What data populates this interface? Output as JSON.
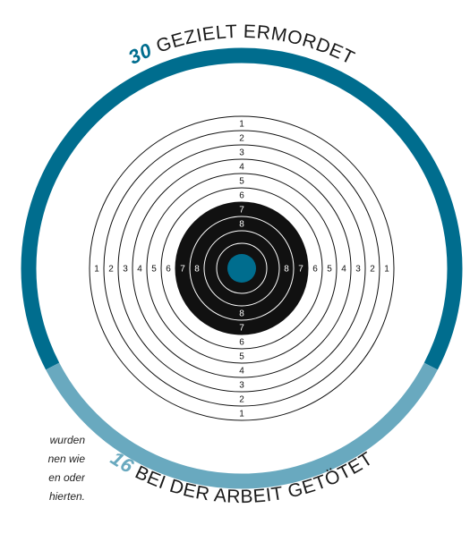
{
  "chart_data": {
    "type": "pie",
    "style": "donut-ring",
    "title": "",
    "segments": [
      {
        "label": "GEZIELT ERMORDET",
        "value": 30,
        "color": "#006d8e"
      },
      {
        "label": "BEI DER ARBEIT GETÖTET",
        "value": 16,
        "color": "#69a9bf"
      }
    ],
    "target": {
      "ring_numbers": [
        "1",
        "2",
        "3",
        "4",
        "5",
        "6",
        "7",
        "8"
      ],
      "black_rings_from": 7,
      "bullseye_color": "#006d8e",
      "ring_color": "#111111"
    }
  },
  "side_note": {
    "lines": [
      "wurden",
      "nen wie",
      "en oder",
      "hierten."
    ]
  }
}
